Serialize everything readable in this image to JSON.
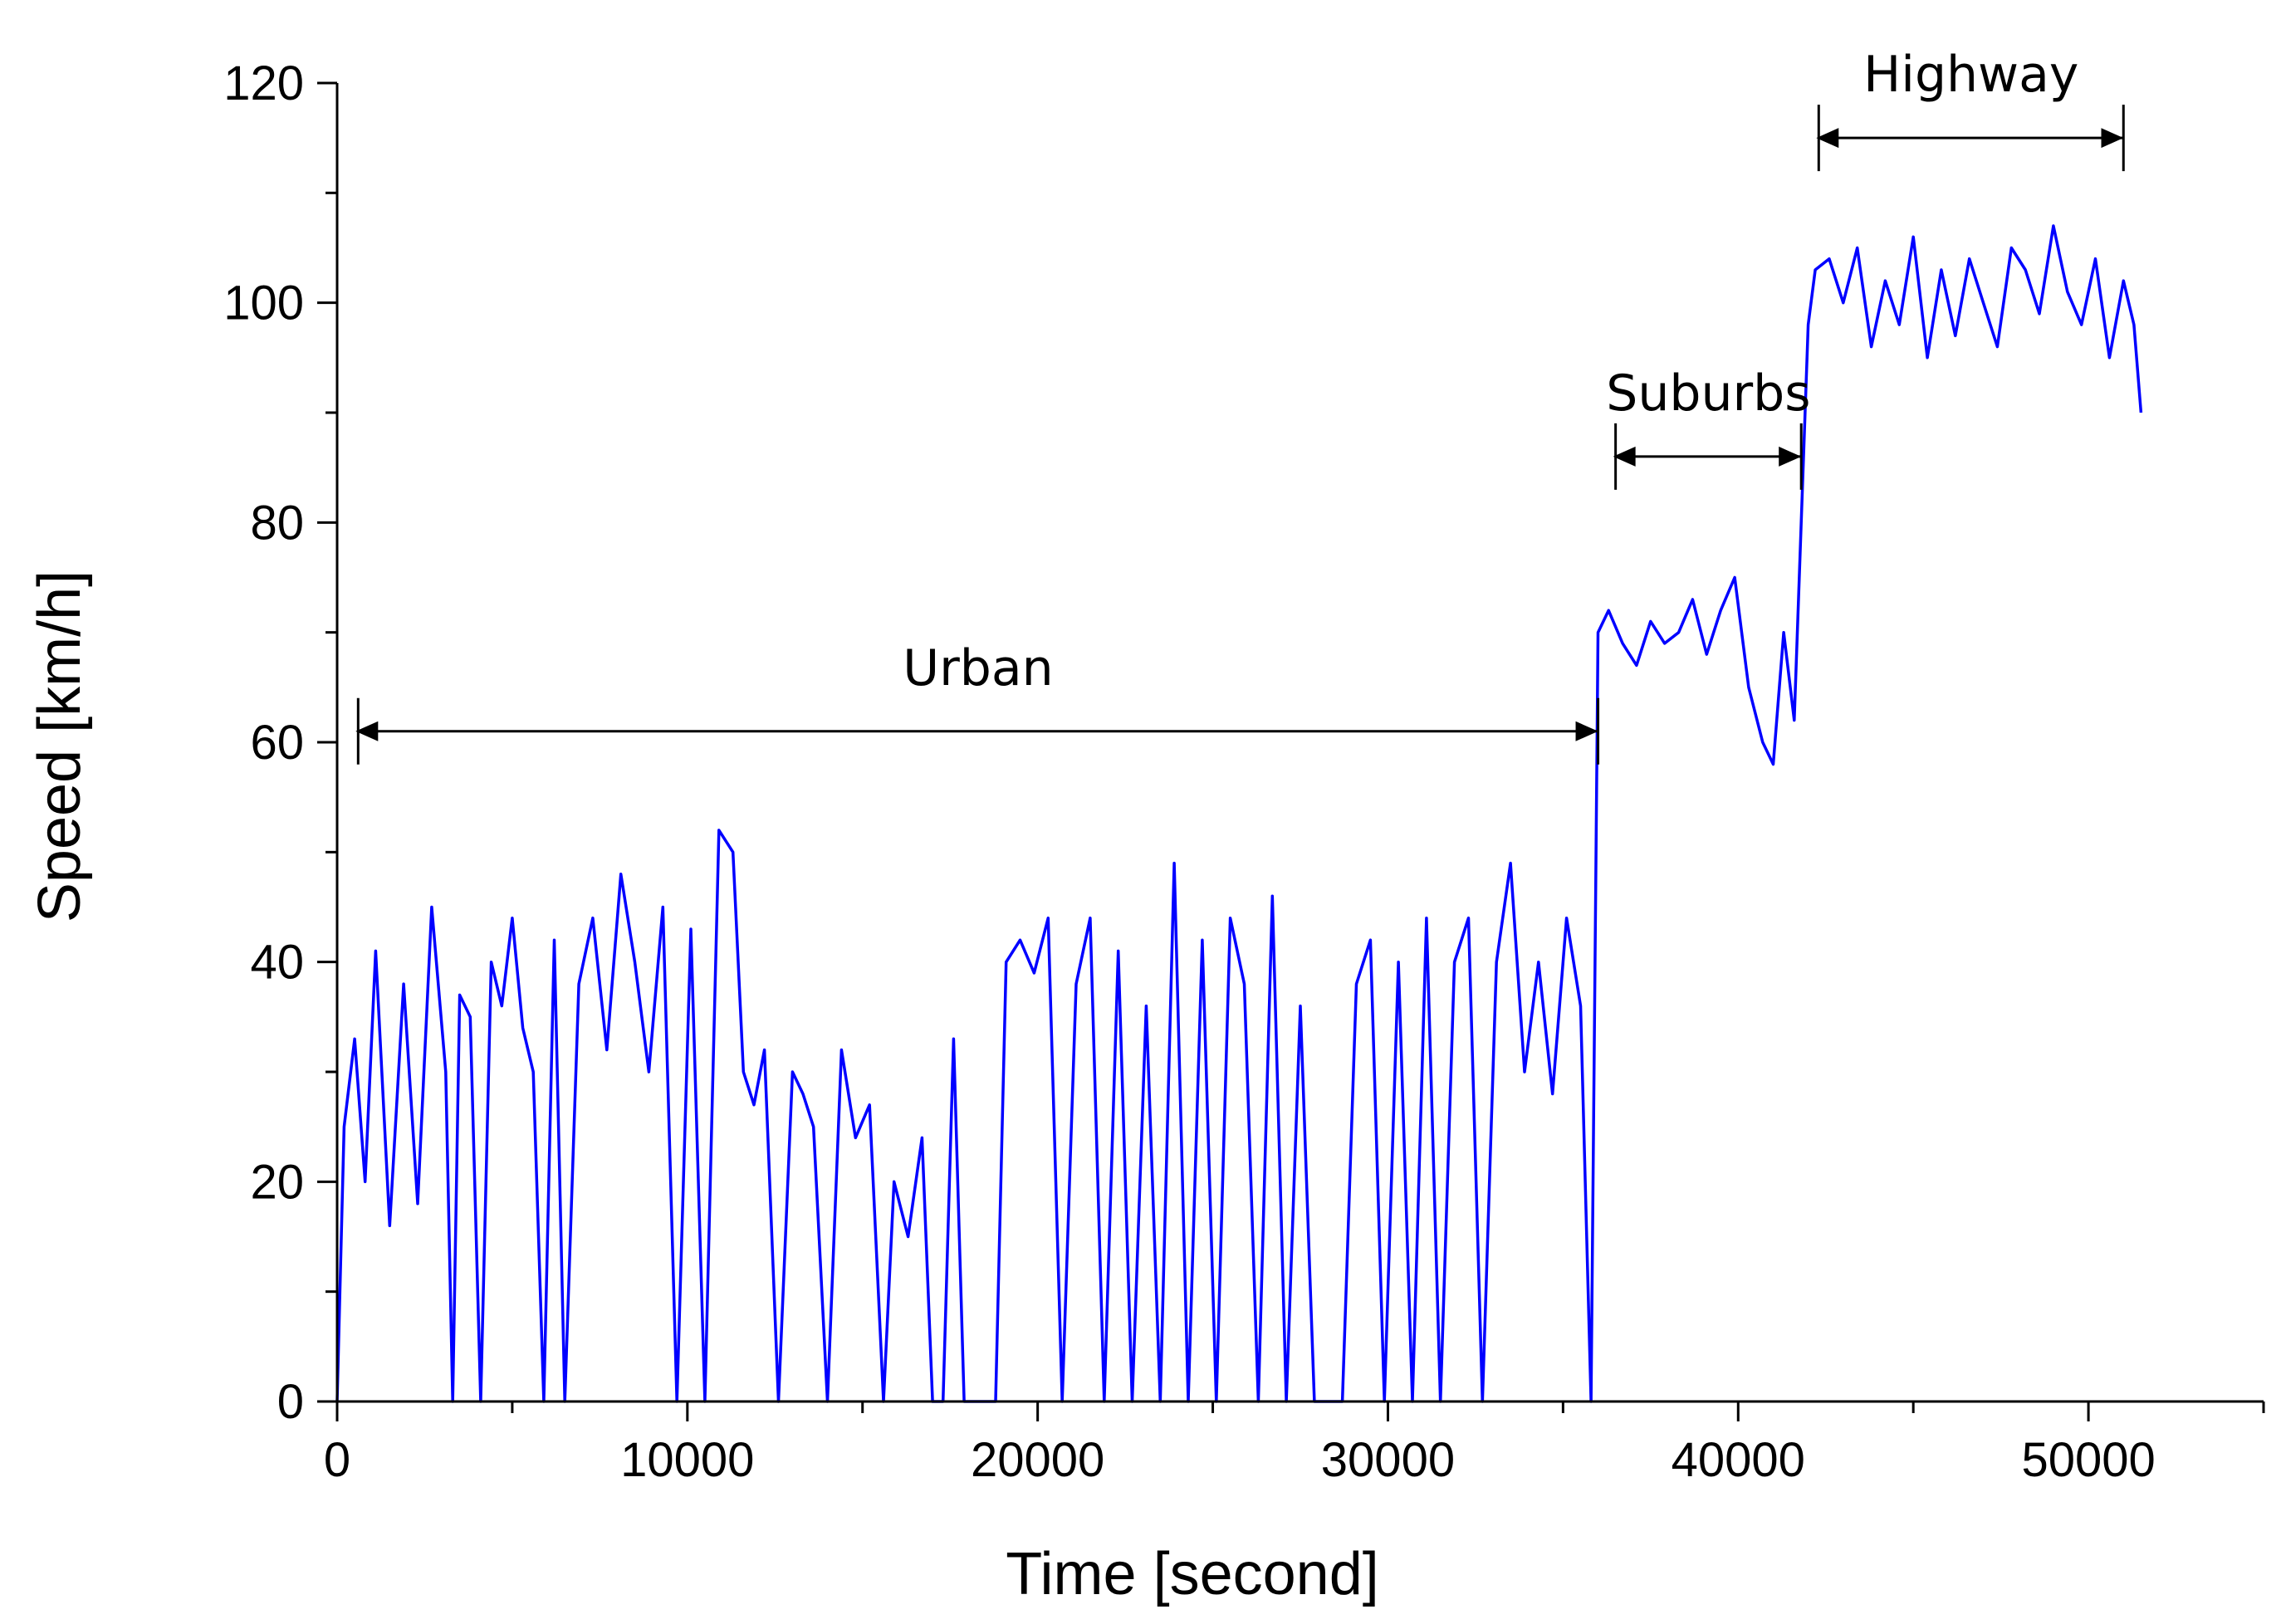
{
  "chart_data": {
    "type": "line",
    "xlabel": "Time [second]",
    "ylabel": "Speed [km/h]",
    "xlim": [
      0,
      55000
    ],
    "ylim": [
      0,
      120
    ],
    "x_ticks": [
      0,
      10000,
      20000,
      30000,
      40000,
      50000
    ],
    "y_ticks": [
      0,
      20,
      40,
      60,
      80,
      100,
      120
    ],
    "grid": false,
    "line_color": "#0000ff",
    "series": [
      {
        "x": [
          0,
          200,
          500,
          800,
          1100,
          1500,
          1900,
          2300,
          2700,
          3100,
          3300,
          3500,
          3800,
          4100,
          4400,
          4700,
          5000,
          5300,
          5600,
          5900,
          6200,
          6500,
          6900,
          7300,
          7700,
          8100,
          8500,
          8900,
          9300,
          9700,
          10100,
          10500,
          10900,
          11300,
          11600,
          11900,
          12200,
          12600,
          13000,
          13300,
          13600,
          14000,
          14400,
          14800,
          15200,
          15600,
          15900,
          16300,
          16700,
          17000,
          17300,
          17600,
          17900,
          18200,
          18500,
          18800,
          19100,
          19500,
          19900,
          20300,
          20700,
          21100,
          21500,
          21900,
          22300,
          22700,
          23100,
          23500,
          23900,
          24300,
          24700,
          25100,
          25500,
          25900,
          26300,
          26700,
          27100,
          27500,
          27900,
          28300,
          28700,
          29100,
          29500,
          29900,
          30300,
          30700,
          31100,
          31500,
          31900,
          32300,
          32700,
          33100,
          33500,
          33900,
          34300,
          34700,
          35100,
          35500,
          35800,
          36000,
          36300,
          36700,
          37100,
          37500,
          37900,
          38300,
          38700,
          39100,
          39500,
          39900,
          40300,
          40700,
          41000,
          41300,
          41600,
          41800,
          42000,
          42200,
          42600,
          43000,
          43400,
          43800,
          44200,
          44600,
          45000,
          45400,
          45800,
          46200,
          46600,
          47000,
          47400,
          47800,
          48200,
          48600,
          49000,
          49400,
          49800,
          50200,
          50600,
          51000,
          51300,
          51500
        ],
        "y": [
          0,
          25,
          33,
          20,
          41,
          16,
          38,
          18,
          45,
          30,
          0,
          37,
          35,
          0,
          40,
          36,
          44,
          34,
          30,
          0,
          42,
          0,
          38,
          44,
          32,
          48,
          40,
          30,
          45,
          0,
          43,
          0,
          52,
          50,
          30,
          27,
          32,
          0,
          30,
          28,
          25,
          0,
          32,
          24,
          27,
          0,
          20,
          15,
          24,
          0,
          0,
          33,
          0,
          0,
          0,
          0,
          40,
          42,
          39,
          44,
          0,
          38,
          44,
          0,
          41,
          0,
          36,
          0,
          49,
          0,
          42,
          0,
          44,
          38,
          0,
          46,
          0,
          36,
          0,
          0,
          0,
          38,
          42,
          0,
          40,
          0,
          44,
          0,
          40,
          44,
          0,
          40,
          49,
          30,
          40,
          28,
          44,
          36,
          0,
          70,
          72,
          69,
          67,
          71,
          69,
          70,
          73,
          68,
          72,
          75,
          65,
          60,
          58,
          70,
          62,
          80,
          98,
          103,
          104,
          100,
          105,
          96,
          102,
          98,
          106,
          95,
          103,
          97,
          104,
          100,
          96,
          105,
          103,
          99,
          107,
          101,
          98,
          104,
          95,
          102,
          98,
          90
        ]
      }
    ],
    "annotations": [
      {
        "label": "Urban",
        "x_start": 600,
        "x_end": 36000,
        "y": 61
      },
      {
        "label": "Suburbs",
        "x_start": 36500,
        "x_end": 41800,
        "y": 86
      },
      {
        "label": "Highway",
        "x_start": 42300,
        "x_end": 51000,
        "y": 115
      }
    ]
  }
}
